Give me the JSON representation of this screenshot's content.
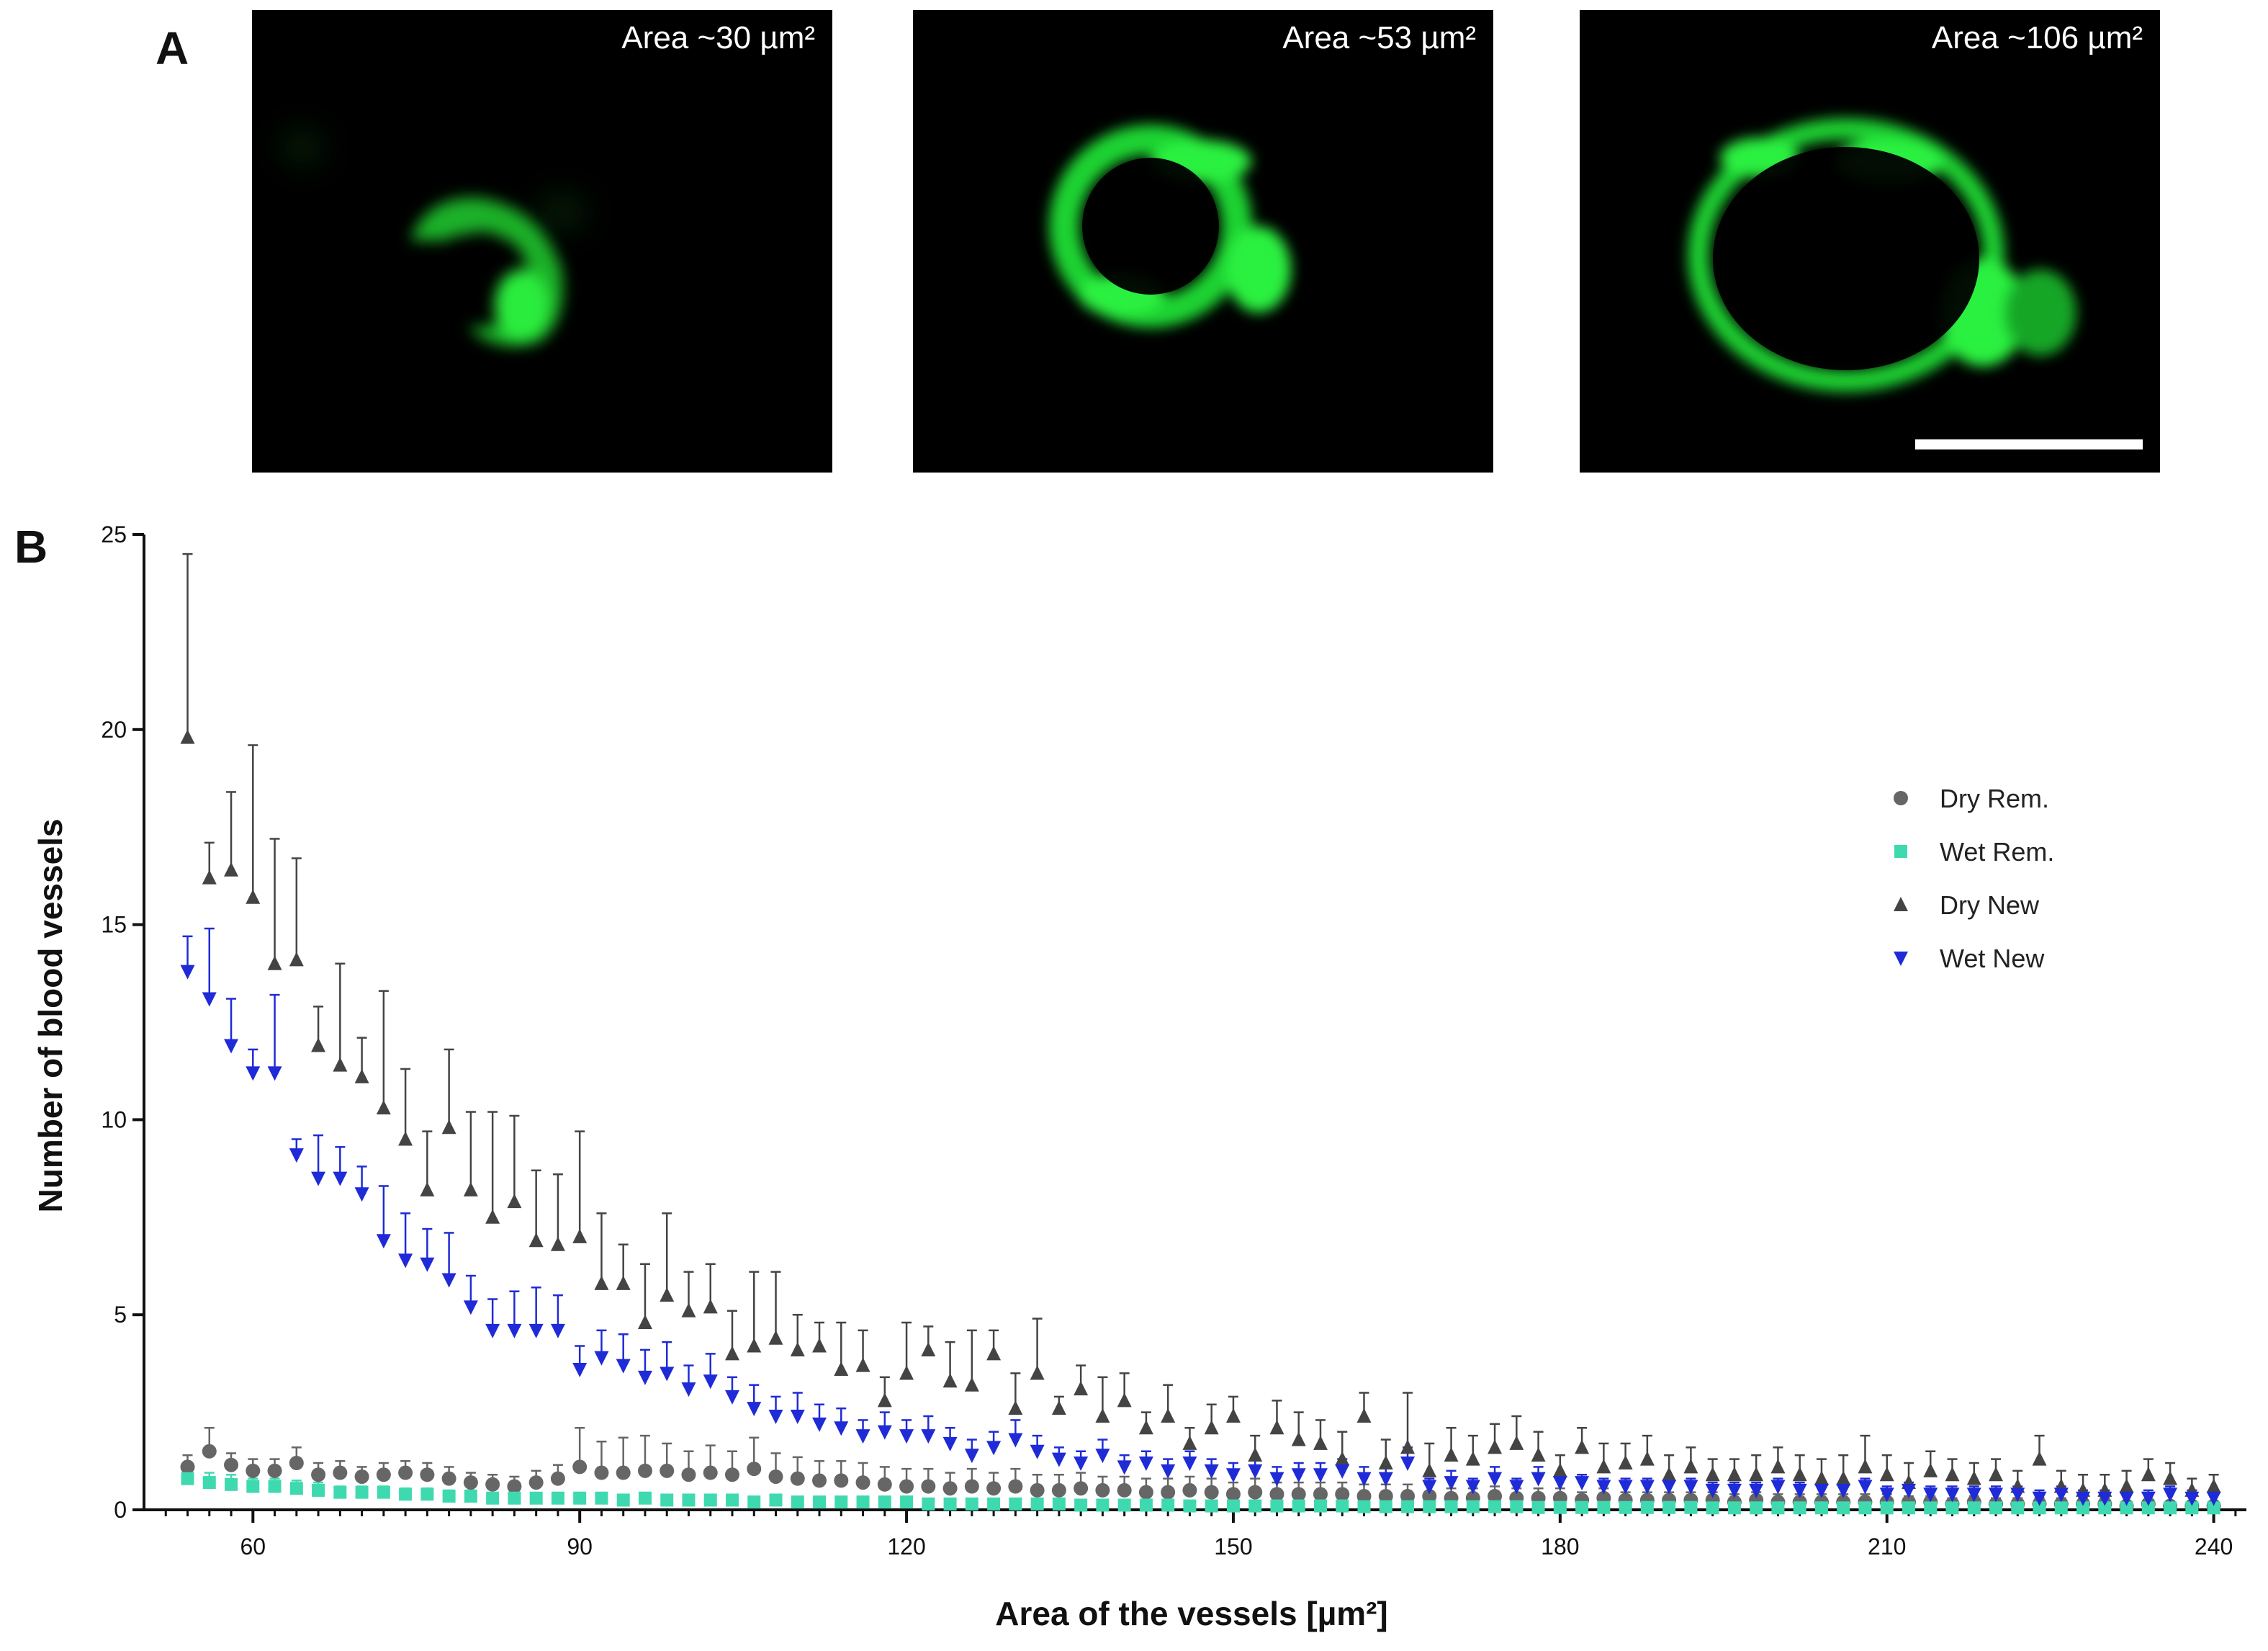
{
  "panel_a": {
    "letter": "A",
    "images": [
      {
        "caption": "Area ~30 µm²"
      },
      {
        "caption": "Area ~53 µm²"
      },
      {
        "caption": "Area ~106 µm²"
      }
    ],
    "colors": {
      "background": "#000000",
      "signal": "#22e33a"
    }
  },
  "panel_b": {
    "letter": "B"
  },
  "chart_data": {
    "type": "scatter",
    "title": "",
    "xlabel": "Area of the vessels [µm²]",
    "ylabel": "Number of blood vessels",
    "xlim": [
      50,
      243
    ],
    "ylim": [
      0,
      25
    ],
    "x_ticks": [
      60,
      90,
      120,
      150,
      180,
      210,
      240
    ],
    "x_minor_step": 2,
    "y_ticks": [
      0,
      5,
      10,
      15,
      20,
      25
    ],
    "grid": false,
    "legend_position": "right",
    "x": [
      54,
      56,
      58,
      60,
      62,
      64,
      66,
      68,
      70,
      72,
      74,
      76,
      78,
      80,
      82,
      84,
      86,
      88,
      90,
      92,
      94,
      96,
      98,
      100,
      102,
      104,
      106,
      108,
      110,
      112,
      114,
      116,
      118,
      120,
      122,
      124,
      126,
      128,
      130,
      132,
      134,
      136,
      138,
      140,
      142,
      144,
      146,
      148,
      150,
      152,
      154,
      156,
      158,
      160,
      162,
      164,
      166,
      168,
      170,
      172,
      174,
      176,
      178,
      180,
      182,
      184,
      186,
      188,
      190,
      192,
      194,
      196,
      198,
      200,
      202,
      204,
      206,
      208,
      210,
      212,
      214,
      216,
      218,
      220,
      222,
      224,
      226,
      228,
      230,
      232,
      234,
      236,
      238,
      240
    ],
    "series": [
      {
        "name": "Dry Rem.",
        "color": "#666666",
        "marker": "circle",
        "values": [
          1.1,
          1.5,
          1.15,
          1.0,
          1.0,
          1.2,
          0.9,
          0.95,
          0.85,
          0.9,
          0.95,
          0.9,
          0.8,
          0.7,
          0.65,
          0.6,
          0.7,
          0.8,
          1.1,
          0.95,
          0.95,
          1.0,
          1.0,
          0.9,
          0.95,
          0.9,
          1.05,
          0.85,
          0.8,
          0.75,
          0.75,
          0.7,
          0.65,
          0.6,
          0.6,
          0.55,
          0.6,
          0.55,
          0.6,
          0.5,
          0.5,
          0.55,
          0.5,
          0.5,
          0.45,
          0.45,
          0.5,
          0.45,
          0.4,
          0.45,
          0.4,
          0.4,
          0.4,
          0.4,
          0.35,
          0.35,
          0.35,
          0.35,
          0.3,
          0.3,
          0.35,
          0.3,
          0.3,
          0.3,
          0.25,
          0.3,
          0.25,
          0.25,
          0.25,
          0.25,
          0.25,
          0.2,
          0.25,
          0.2,
          0.2,
          0.2,
          0.2,
          0.2,
          0.2,
          0.2,
          0.2,
          0.15,
          0.2,
          0.15,
          0.15,
          0.15,
          0.15,
          0.15,
          0.15,
          0.1,
          0.15,
          0.1,
          0.1,
          0.1
        ],
        "errors": [
          0.3,
          0.6,
          0.3,
          0.3,
          0.3,
          0.4,
          0.3,
          0.3,
          0.25,
          0.3,
          0.3,
          0.3,
          0.3,
          0.25,
          0.25,
          0.25,
          0.3,
          0.35,
          1.0,
          0.8,
          0.9,
          0.9,
          0.7,
          0.6,
          0.7,
          0.6,
          0.8,
          0.6,
          0.55,
          0.5,
          0.5,
          0.5,
          0.45,
          0.45,
          0.45,
          0.4,
          0.45,
          0.4,
          0.45,
          0.4,
          0.4,
          0.4,
          0.35,
          0.35,
          0.35,
          0.35,
          0.35,
          0.35,
          0.3,
          0.35,
          0.3,
          0.3,
          0.3,
          0.3,
          0.3,
          0.3,
          0.3,
          0.3,
          0.25,
          0.25,
          0.25,
          0.25,
          0.25,
          0.25,
          0.2,
          0.25,
          0.2,
          0.2,
          0.2,
          0.2,
          0.2,
          0.2,
          0.2,
          0.2,
          0.2,
          0.2,
          0.2,
          0.2,
          0.2,
          0.15,
          0.15,
          0.15,
          0.15,
          0.15,
          0.15,
          0.15,
          0.15,
          0.15,
          0.15,
          0.1,
          0.1,
          0.1,
          0.1,
          0.1
        ]
      },
      {
        "name": "Wet Rem.",
        "color": "#3fd9b0",
        "marker": "square",
        "values": [
          0.8,
          0.7,
          0.65,
          0.6,
          0.6,
          0.55,
          0.5,
          0.45,
          0.45,
          0.45,
          0.4,
          0.4,
          0.35,
          0.35,
          0.3,
          0.3,
          0.3,
          0.3,
          0.3,
          0.3,
          0.25,
          0.3,
          0.25,
          0.25,
          0.25,
          0.25,
          0.2,
          0.25,
          0.2,
          0.2,
          0.2,
          0.2,
          0.2,
          0.2,
          0.15,
          0.15,
          0.15,
          0.15,
          0.15,
          0.15,
          0.15,
          0.12,
          0.12,
          0.12,
          0.12,
          0.12,
          0.1,
          0.1,
          0.1,
          0.1,
          0.1,
          0.1,
          0.1,
          0.1,
          0.08,
          0.08,
          0.08,
          0.08,
          0.08,
          0.08,
          0.08,
          0.08,
          0.06,
          0.06,
          0.06,
          0.06,
          0.06,
          0.06,
          0.06,
          0.06,
          0.05,
          0.05,
          0.05,
          0.05,
          0.05,
          0.05,
          0.05,
          0.05,
          0.05,
          0.05,
          0.05,
          0.05,
          0.05,
          0.05,
          0.05,
          0.05,
          0.05,
          0.05,
          0.05,
          0.05,
          0.05,
          0.05,
          0.05,
          0.05
        ],
        "errors": [
          0.3,
          0.25,
          0.25,
          0.2,
          0.2,
          0.2,
          0.2,
          0.15,
          0.15,
          0.15,
          0.15,
          0.15,
          0.15,
          0.15,
          0.1,
          0.1,
          0.1,
          0.1,
          0.1,
          0.1,
          0.1,
          0.1,
          0.1,
          0.1,
          0.1,
          0.1,
          0.1,
          0.1,
          0.1,
          0.1,
          0.1,
          0.1,
          0.1,
          0.1,
          0.08,
          0.08,
          0.08,
          0.08,
          0.08,
          0.08,
          0.08,
          0.06,
          0.06,
          0.06,
          0.06,
          0.06,
          0.05,
          0.05,
          0.05,
          0.05,
          0.05,
          0.05,
          0.05,
          0.05,
          0.04,
          0.04,
          0.04,
          0.04,
          0.04,
          0.04,
          0.04,
          0.04,
          0.03,
          0.03,
          0.03,
          0.03,
          0.03,
          0.03,
          0.03,
          0.03,
          0.03,
          0.03,
          0.03,
          0.03,
          0.03,
          0.03,
          0.03,
          0.03,
          0.03,
          0.03,
          0.03,
          0.03,
          0.03,
          0.03,
          0.03,
          0.03,
          0.03,
          0.03,
          0.03,
          0.03,
          0.03,
          0.03,
          0.03,
          0.03
        ]
      },
      {
        "name": "Dry New",
        "color": "#444444",
        "marker": "triangle-up",
        "values": [
          19.8,
          16.2,
          16.4,
          15.7,
          14.0,
          14.1,
          11.9,
          11.4,
          11.1,
          10.3,
          9.5,
          8.2,
          9.8,
          8.2,
          7.5,
          7.9,
          6.9,
          6.8,
          7.0,
          5.8,
          5.8,
          4.8,
          5.5,
          5.1,
          5.2,
          4.0,
          4.2,
          4.4,
          4.1,
          4.2,
          3.6,
          3.7,
          2.8,
          3.5,
          4.1,
          3.3,
          3.2,
          4.0,
          2.6,
          3.5,
          2.6,
          3.1,
          2.4,
          2.8,
          2.1,
          2.4,
          1.7,
          2.1,
          2.4,
          1.4,
          2.1,
          1.8,
          1.7,
          1.3,
          2.4,
          1.2,
          1.6,
          1.0,
          1.4,
          1.3,
          1.6,
          1.7,
          1.4,
          1.0,
          1.6,
          1.1,
          1.2,
          1.3,
          0.9,
          1.1,
          0.9,
          0.9,
          0.9,
          1.1,
          0.9,
          0.8,
          0.8,
          1.1,
          0.9,
          0.7,
          1.0,
          0.9,
          0.8,
          0.9,
          0.6,
          1.3,
          0.6,
          0.5,
          0.5,
          0.6,
          0.9,
          0.8,
          0.5,
          0.6
        ],
        "errors": [
          4.7,
          0.9,
          2.0,
          3.9,
          3.2,
          2.6,
          1.0,
          2.6,
          1.0,
          3.0,
          1.8,
          1.5,
          2.0,
          2.0,
          2.7,
          2.2,
          1.8,
          1.8,
          2.7,
          1.8,
          1.0,
          1.5,
          2.1,
          1.0,
          1.1,
          1.1,
          1.9,
          1.7,
          0.9,
          0.6,
          1.2,
          0.9,
          0.6,
          1.3,
          0.6,
          1.0,
          1.4,
          0.6,
          0.9,
          1.4,
          0.3,
          0.6,
          1.0,
          0.7,
          0.4,
          0.8,
          0.4,
          0.6,
          0.5,
          0.5,
          0.7,
          0.7,
          0.6,
          0.7,
          0.6,
          0.6,
          1.4,
          0.7,
          0.7,
          0.6,
          0.6,
          0.7,
          0.6,
          0.4,
          0.5,
          0.6,
          0.5,
          0.6,
          0.5,
          0.5,
          0.4,
          0.4,
          0.5,
          0.5,
          0.5,
          0.5,
          0.6,
          0.8,
          0.5,
          0.5,
          0.5,
          0.4,
          0.4,
          0.4,
          0.4,
          0.6,
          0.4,
          0.4,
          0.4,
          0.4,
          0.4,
          0.4,
          0.3,
          0.3
        ]
      },
      {
        "name": "Wet New",
        "color": "#1f2bd6",
        "marker": "triangle-down",
        "values": [
          13.8,
          13.1,
          11.9,
          11.2,
          11.2,
          9.1,
          8.5,
          8.5,
          8.1,
          6.9,
          6.4,
          6.3,
          5.9,
          5.2,
          4.6,
          4.6,
          4.6,
          4.6,
          3.6,
          3.9,
          3.7,
          3.4,
          3.5,
          3.1,
          3.3,
          2.9,
          2.6,
          2.4,
          2.4,
          2.2,
          2.1,
          1.9,
          2.0,
          1.9,
          1.9,
          1.7,
          1.4,
          1.6,
          1.8,
          1.5,
          1.3,
          1.2,
          1.4,
          1.1,
          1.2,
          1.0,
          1.2,
          1.0,
          0.9,
          1.0,
          0.8,
          0.9,
          0.9,
          1.0,
          0.8,
          0.8,
          1.2,
          0.6,
          0.7,
          0.6,
          0.8,
          0.6,
          0.8,
          0.7,
          0.7,
          0.6,
          0.6,
          0.6,
          0.6,
          0.6,
          0.5,
          0.5,
          0.5,
          0.6,
          0.5,
          0.5,
          0.5,
          0.6,
          0.4,
          0.5,
          0.4,
          0.4,
          0.4,
          0.4,
          0.4,
          0.3,
          0.4,
          0.3,
          0.3,
          0.3,
          0.3,
          0.4,
          0.3,
          0.3
        ],
        "errors": [
          0.9,
          1.8,
          1.2,
          0.6,
          2.0,
          0.4,
          1.1,
          0.8,
          0.7,
          1.4,
          1.2,
          0.9,
          1.2,
          0.8,
          0.8,
          1.0,
          1.1,
          0.9,
          0.6,
          0.7,
          0.8,
          0.7,
          0.8,
          0.6,
          0.7,
          0.5,
          0.6,
          0.5,
          0.6,
          0.5,
          0.5,
          0.4,
          0.5,
          0.4,
          0.5,
          0.4,
          0.4,
          0.4,
          0.5,
          0.4,
          0.3,
          0.3,
          0.4,
          0.3,
          0.3,
          0.3,
          0.3,
          0.3,
          0.3,
          0.3,
          0.3,
          0.3,
          0.3,
          0.3,
          0.3,
          0.3,
          0.4,
          0.2,
          0.3,
          0.2,
          0.3,
          0.2,
          0.3,
          0.2,
          0.2,
          0.2,
          0.2,
          0.2,
          0.2,
          0.2,
          0.2,
          0.2,
          0.2,
          0.2,
          0.2,
          0.2,
          0.2,
          0.2,
          0.2,
          0.2,
          0.2,
          0.2,
          0.2,
          0.2,
          0.2,
          0.2,
          0.2,
          0.2,
          0.2,
          0.2,
          0.2,
          0.2,
          0.2,
          0.2
        ]
      }
    ]
  }
}
